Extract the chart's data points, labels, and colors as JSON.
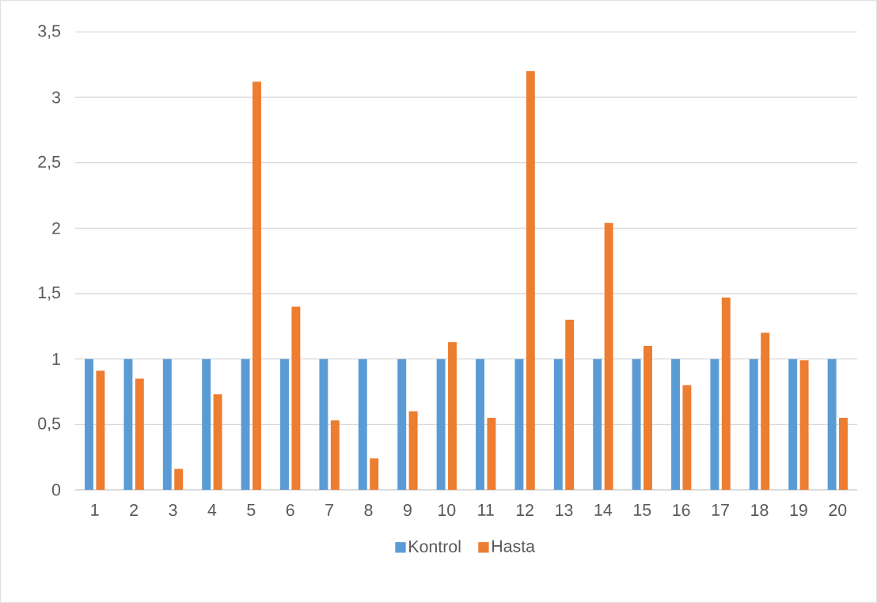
{
  "chart_data": {
    "type": "bar",
    "categories": [
      "1",
      "2",
      "3",
      "4",
      "5",
      "6",
      "7",
      "8",
      "9",
      "10",
      "11",
      "12",
      "13",
      "14",
      "15",
      "16",
      "17",
      "18",
      "19",
      "20"
    ],
    "series": [
      {
        "name": "Kontrol",
        "color": "#5b9bd5",
        "values": [
          1,
          1,
          1,
          1,
          1,
          1,
          1,
          1,
          1,
          1,
          1,
          1,
          1,
          1,
          1,
          1,
          1,
          1,
          1,
          1
        ]
      },
      {
        "name": "Hasta",
        "color": "#ed7d31",
        "values": [
          0.91,
          0.85,
          0.16,
          0.73,
          3.12,
          1.4,
          0.53,
          0.24,
          0.6,
          1.13,
          0.55,
          3.2,
          1.3,
          2.04,
          1.1,
          0.8,
          1.47,
          1.2,
          0.99,
          0.55
        ]
      }
    ],
    "ylim": [
      0,
      3.5
    ],
    "yticks": [
      0,
      {
        "value": 0.5,
        "label": "0,5"
      },
      1,
      {
        "value": 1.5,
        "label": "1,5"
      },
      2,
      {
        "value": 2.5,
        "label": "2,5"
      },
      3,
      {
        "value": 3.5,
        "label": "3,5"
      }
    ],
    "grid": "y",
    "legend": "bottom"
  }
}
